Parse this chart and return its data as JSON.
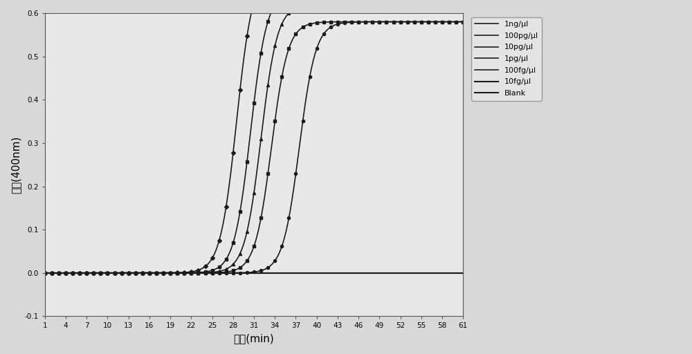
{
  "title": "",
  "xlabel": "时间(min)",
  "ylabel": "浓度(400nm)",
  "xlim": [
    1,
    61
  ],
  "ylim": [
    -0.1,
    0.6
  ],
  "xticks": [
    1,
    4,
    7,
    10,
    13,
    16,
    19,
    22,
    25,
    28,
    31,
    34,
    37,
    40,
    43,
    46,
    49,
    52,
    55,
    58,
    61
  ],
  "yticks": [
    -0.1,
    0.0,
    0.1,
    0.2,
    0.3,
    0.4,
    0.5,
    0.6
  ],
  "series": [
    {
      "label": "1ng/μl",
      "midpoint": 28.5,
      "k": 0.85,
      "ymax": 0.7,
      "marker": "D",
      "ms": 3,
      "lw": 1.2
    },
    {
      "label": "100pg/μl",
      "midpoint": 30.5,
      "k": 0.85,
      "ymax": 0.65,
      "marker": "s",
      "ms": 3,
      "lw": 1.2
    },
    {
      "label": "10pg/μl",
      "midpoint": 32.0,
      "k": 0.85,
      "ymax": 0.62,
      "marker": "^",
      "ms": 3,
      "lw": 1.2
    },
    {
      "label": "1pg/μl",
      "midpoint": 33.5,
      "k": 0.85,
      "ymax": 0.58,
      "marker": "s",
      "ms": 3,
      "lw": 1.2
    },
    {
      "label": "100fg/μl",
      "midpoint": 37.5,
      "k": 0.85,
      "ymax": 0.58,
      "marker": "o",
      "ms": 3,
      "lw": 1.2
    },
    {
      "label": "10fg/μl",
      "midpoint": 999,
      "k": 0.85,
      "ymax": 0.0,
      "marker": "",
      "ms": 0,
      "lw": 1.5
    },
    {
      "label": "Blank",
      "midpoint": 999,
      "k": 0.85,
      "ymax": 0.0,
      "marker": "",
      "ms": 0,
      "lw": 1.5
    }
  ],
  "line_color": "#1a1a1a",
  "bg_color": "#d8d8d8",
  "plot_bg": "#e8e8e8",
  "marker_every": 1
}
